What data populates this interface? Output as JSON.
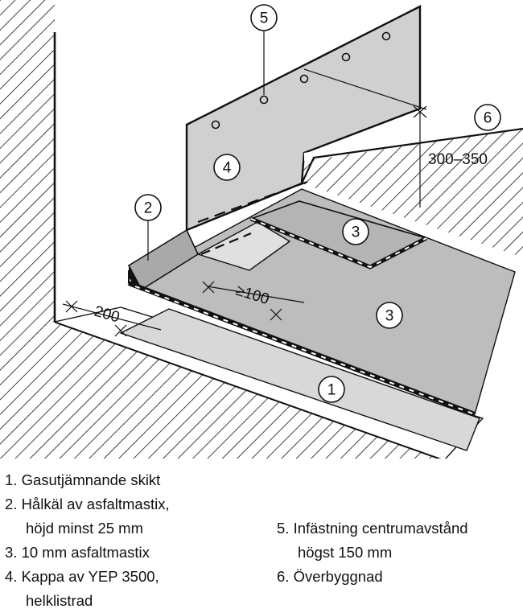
{
  "callouts": {
    "c1": "1",
    "c2": "2",
    "c3a": "3",
    "c3b": "3",
    "c4": "4",
    "c5": "5",
    "c6": "6"
  },
  "dimensions": {
    "width_200": "200",
    "overlap_min": "≥100",
    "height_range": "300–350"
  },
  "legend": {
    "left": [
      {
        "line": "1. Gasutjämnande skikt"
      },
      {
        "line": "2. Hålkäl av asfaltmastix,",
        "cont": "höjd minst 25 mm"
      },
      {
        "line": "3. 10 mm asfaltmastix"
      },
      {
        "line": "4. Kappa av YEP 3500,",
        "cont": "helklistrad"
      }
    ],
    "right": [
      {
        "line": "5. Infästning centrumavstånd",
        "cont": "högst 150 mm"
      },
      {
        "line": "6. Överbyggnad"
      }
    ]
  },
  "colors": {
    "line": "#111111",
    "membrane_fill": "#c8c8c8",
    "layer_fill": "#b4b4b4",
    "light_fill": "#dcdcdc",
    "background": "#ffffff"
  }
}
